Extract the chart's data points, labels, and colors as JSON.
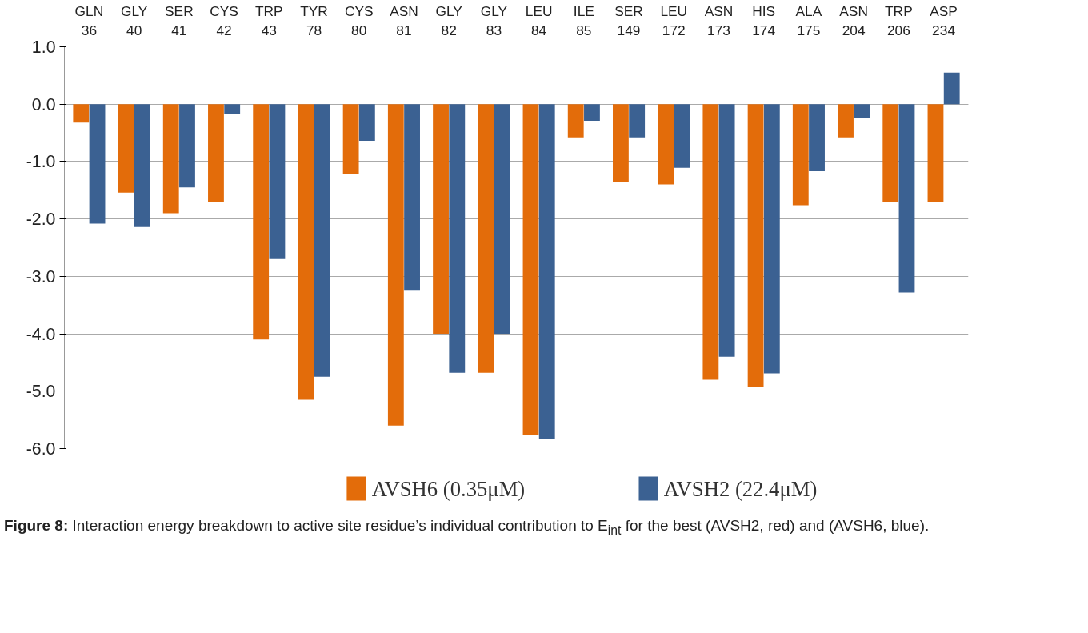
{
  "chart_data": {
    "type": "bar",
    "categories": [
      "GLN\n36",
      "GLY\n40",
      "SER\n41",
      "CYS\n42",
      "TRP\n43",
      "TYR\n78",
      "CYS\n80",
      "ASN\n81",
      "GLY\n82",
      "GLY\n83",
      "LEU\n84",
      "ILE\n85",
      "SER\n149",
      "LEU\n172",
      "ASN\n173",
      "HIS\n174",
      "ALA\n175",
      "ASN\n204",
      "TRP\n206",
      "ASP\n234"
    ],
    "series": [
      {
        "name": "AVSH6 (0.35μM)",
        "color": "#e36c0a",
        "values": [
          -0.32,
          -1.54,
          -1.9,
          -1.71,
          -4.1,
          -5.15,
          -1.21,
          -5.6,
          -4.0,
          -4.68,
          -5.76,
          -0.58,
          -1.35,
          -1.4,
          -4.8,
          -4.93,
          -1.76,
          -0.58,
          -1.71,
          -1.71
        ]
      },
      {
        "name": "AVSH2 (22.4μM)",
        "color": "#3b6192",
        "values": [
          -2.08,
          -2.14,
          -1.45,
          -0.18,
          -2.7,
          -4.75,
          -0.64,
          -3.25,
          -4.68,
          -4.0,
          -5.83,
          -0.29,
          -0.58,
          -1.11,
          -4.4,
          -4.69,
          -1.17,
          -0.24,
          -3.28,
          0.55
        ]
      }
    ],
    "ylim": [
      -6,
      1
    ],
    "yticks": [
      {
        "value": 1,
        "label": "1.0"
      },
      {
        "value": 0,
        "label": "0.0"
      },
      {
        "value": -1,
        "label": "-1.0"
      },
      {
        "value": -2,
        "label": "-2.0"
      },
      {
        "value": -3,
        "label": "-3.0"
      },
      {
        "value": -4,
        "label": "-4.0"
      },
      {
        "value": -5,
        "label": "-5.0"
      },
      {
        "value": -6,
        "label": "-6.0"
      }
    ],
    "grid": "y",
    "legend": "bottom",
    "annotations": [
      "Figure 8: Interaction energy breakdown to active site residue’s individual contribution to E$_{int}$ for the best (AVSH2, red) and (AVSH6, blue)."
    ]
  }
}
